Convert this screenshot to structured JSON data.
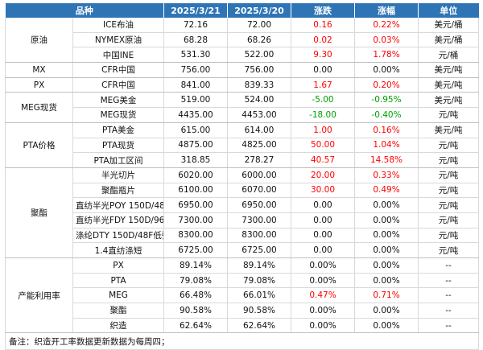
{
  "headers": [
    "品种",
    "2025/3/21",
    "2025/3/20",
    "涨跌",
    "涨幅",
    "单位"
  ],
  "groups": [
    {
      "category": "原油",
      "rows": [
        {
          "item": "ICE布油",
          "v1": "72.16",
          "v2": "72.00",
          "chg": "0.16",
          "pct": "0.22%",
          "unit": "美元/桶",
          "color": "red"
        },
        {
          "item": "NYMEX原油",
          "v1": "68.28",
          "v2": "68.26",
          "chg": "0.02",
          "pct": "0.03%",
          "unit": "美元/桶",
          "color": "red"
        },
        {
          "item": "中国INE",
          "v1": "531.30",
          "v2": "522.00",
          "chg": "9.30",
          "pct": "1.78%",
          "unit": "元/桶",
          "color": "red"
        }
      ]
    },
    {
      "category": "MX",
      "rows": [
        {
          "item": "CFR中国",
          "v1": "756.00",
          "v2": "756.00",
          "chg": "0.00",
          "pct": "0.00%",
          "unit": "美元/吨",
          "color": "black"
        }
      ]
    },
    {
      "category": "PX",
      "rows": [
        {
          "item": "CFR中国",
          "v1": "841.00",
          "v2": "839.33",
          "chg": "1.67",
          "pct": "0.20%",
          "unit": "美元/吨",
          "color": "red"
        }
      ]
    },
    {
      "category": "MEG现货",
      "rows": [
        {
          "item": "MEG美金",
          "v1": "519.00",
          "v2": "524.00",
          "chg": "-5.00",
          "pct": "-0.95%",
          "unit": "美元/吨",
          "color": "green"
        },
        {
          "item": "MEG现货",
          "v1": "4435.00",
          "v2": "4453.00",
          "chg": "-18.00",
          "pct": "-0.40%",
          "unit": "元/吨",
          "color": "green"
        }
      ]
    },
    {
      "category": "PTA价格",
      "rows": [
        {
          "item": "PTA美金",
          "v1": "615.00",
          "v2": "614.00",
          "chg": "1.00",
          "pct": "0.16%",
          "unit": "美元/吨",
          "color": "red"
        },
        {
          "item": "PTA现货",
          "v1": "4875.00",
          "v2": "4825.00",
          "chg": "50.00",
          "pct": "1.04%",
          "unit": "元/吨",
          "color": "red"
        },
        {
          "item": "PTA加工区间",
          "v1": "318.85",
          "v2": "278.27",
          "chg": "40.57",
          "pct": "14.58%",
          "unit": "元/吨",
          "color": "red"
        }
      ]
    },
    {
      "category": "聚酯",
      "rows": [
        {
          "item": "半光切片",
          "v1": "6020.00",
          "v2": "6000.00",
          "chg": "20.00",
          "pct": "0.33%",
          "unit": "元/吨",
          "color": "red"
        },
        {
          "item": "聚酯瓶片",
          "v1": "6100.00",
          "v2": "6070.00",
          "chg": "30.00",
          "pct": "0.49%",
          "unit": "元/吨",
          "color": "red"
        },
        {
          "item": "直纺半光POY 150D/48F",
          "v1": "6950.00",
          "v2": "6950.00",
          "chg": "0.00",
          "pct": "0.00%",
          "unit": "元/吨",
          "color": "black"
        },
        {
          "item": "直纺半光FDY 150D/96F",
          "v1": "7300.00",
          "v2": "7300.00",
          "chg": "0.00",
          "pct": "0.00%",
          "unit": "元/吨",
          "color": "black"
        },
        {
          "item": "涤纶DTY 150D/48F低弹",
          "v1": "8300.00",
          "v2": "8300.00",
          "chg": "0.00",
          "pct": "0.00%",
          "unit": "元/吨",
          "color": "black"
        },
        {
          "item": "1.4直纺涤短",
          "v1": "6725.00",
          "v2": "6725.00",
          "chg": "0.00",
          "pct": "0.00%",
          "unit": "元/吨",
          "color": "black"
        }
      ]
    },
    {
      "category": "产能利用率",
      "rows": [
        {
          "item": "PX",
          "v1": "89.14%",
          "v2": "89.14%",
          "chg": "0.00%",
          "pct": "0.00%",
          "unit": "--",
          "color": "black"
        },
        {
          "item": "PTA",
          "v1": "79.08%",
          "v2": "79.08%",
          "chg": "0.00%",
          "pct": "0.00%",
          "unit": "--",
          "color": "black"
        },
        {
          "item": "MEG",
          "v1": "66.48%",
          "v2": "66.01%",
          "chg": "0.47%",
          "pct": "0.71%",
          "unit": "--",
          "color": "red"
        },
        {
          "item": "聚酯",
          "v1": "90.58%",
          "v2": "90.58%",
          "chg": "0.00%",
          "pct": "0.00%",
          "unit": "--",
          "color": "black"
        },
        {
          "item": "织造",
          "v1": "62.64%",
          "v2": "62.64%",
          "chg": "0.00%",
          "pct": "0.00%",
          "unit": "--",
          "color": "black"
        }
      ]
    }
  ],
  "note": "备注：织造开工率数据更新数据为每周四；"
}
